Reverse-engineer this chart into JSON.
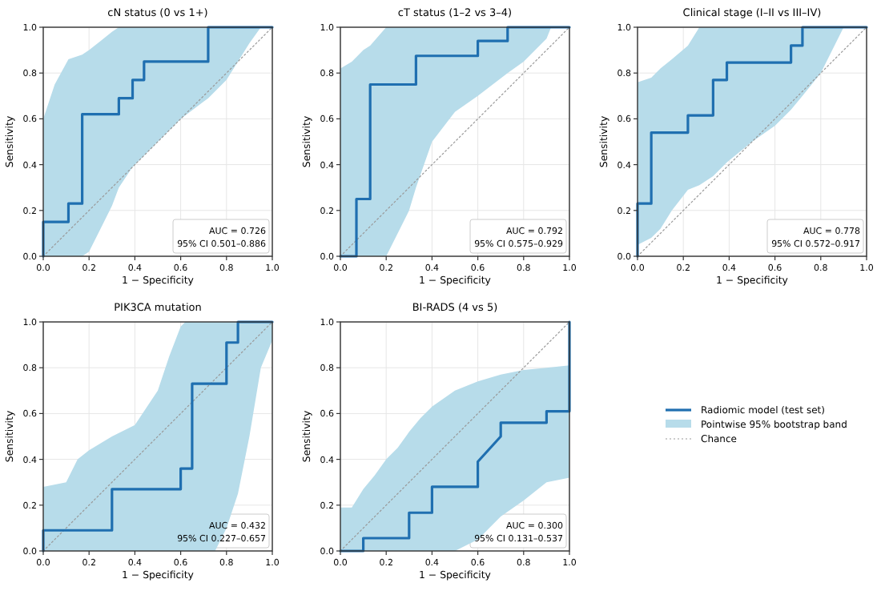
{
  "chart_data": [
    {
      "type": "line",
      "title": "cN status (0 vs 1+)",
      "xlabel": "1 − Specificity",
      "ylabel": "Sensitivity",
      "xlim": [
        0,
        1
      ],
      "ylim": [
        0,
        1
      ],
      "xticks": [
        {
          "value": 0,
          "label": "0.0"
        },
        {
          "value": 0.2,
          "label": "0.2"
        },
        {
          "value": 0.4,
          "label": "0.4"
        },
        {
          "value": 0.6,
          "label": "0.6"
        },
        {
          "value": 0.8,
          "label": "0.8"
        },
        {
          "value": 1,
          "label": "1.0"
        }
      ],
      "yticks": [
        {
          "value": 0,
          "label": "0.0"
        },
        {
          "value": 0.2,
          "label": "0.2"
        },
        {
          "value": 0.4,
          "label": "0.4"
        },
        {
          "value": 0.6,
          "label": "0.6"
        },
        {
          "value": 0.8,
          "label": "0.8"
        },
        {
          "value": 1,
          "label": "1.0"
        }
      ],
      "grid": true,
      "annotations": [
        "AUC = 0.726",
        "95% CI 0.501–0.886"
      ],
      "series": [
        {
          "type": "line",
          "color": "#999999",
          "line_style": "dotted",
          "x": [
            0,
            1
          ],
          "values": [
            0,
            1
          ]
        },
        {
          "type": "line",
          "color": "#1f6fb0",
          "line_style": "solid",
          "x": [
            0,
            0,
            0.05,
            0.11,
            0.11,
            0.17,
            0.17,
            0.2,
            0.25,
            0.3,
            0.33,
            0.33,
            0.39,
            0.39,
            0.44,
            0.44,
            0.5,
            0.6,
            0.72,
            0.72,
            0.8,
            0.9,
            0.95,
            1
          ],
          "values": [
            0,
            0.15,
            0.15,
            0.15,
            0.23,
            0.23,
            0.62,
            0.62,
            0.62,
            0.62,
            0.62,
            0.69,
            0.69,
            0.77,
            0.77,
            0.85,
            0.85,
            0.85,
            0.85,
            1,
            1,
            1,
            1,
            1
          ],
          "upper": [
            0.6,
            0.6,
            0.75,
            0.86,
            0.86,
            0.88,
            0.88,
            0.9,
            0.94,
            0.98,
            1,
            1,
            1,
            1,
            1,
            1,
            1,
            1,
            1,
            1,
            1,
            1,
            1,
            1
          ],
          "lower": [
            0,
            0,
            0,
            0,
            0,
            0,
            0,
            0.02,
            0.12,
            0.22,
            0.3,
            0.3,
            0.39,
            0.39,
            0.44,
            0.44,
            0.5,
            0.6,
            0.69,
            0.69,
            0.77,
            0.93,
            1,
            1
          ]
        }
      ]
    },
    {
      "type": "line",
      "title": "cT status (1–2 vs 3–4)",
      "xlabel": "1 − Specificity",
      "ylabel": "Sensitivity",
      "xlim": [
        0,
        1
      ],
      "ylim": [
        0,
        1
      ],
      "xticks": [
        {
          "value": 0,
          "label": "0.0"
        },
        {
          "value": 0.2,
          "label": "0.2"
        },
        {
          "value": 0.4,
          "label": "0.4"
        },
        {
          "value": 0.6,
          "label": "0.6"
        },
        {
          "value": 0.8,
          "label": "0.8"
        },
        {
          "value": 1,
          "label": "1.0"
        }
      ],
      "yticks": [
        {
          "value": 0,
          "label": "0.0"
        },
        {
          "value": 0.2,
          "label": "0.2"
        },
        {
          "value": 0.4,
          "label": "0.4"
        },
        {
          "value": 0.6,
          "label": "0.6"
        },
        {
          "value": 0.8,
          "label": "0.8"
        },
        {
          "value": 1,
          "label": "1.0"
        }
      ],
      "grid": true,
      "annotations": [
        "AUC = 0.792",
        "95% CI 0.575–0.929"
      ],
      "series": [
        {
          "type": "line",
          "color": "#999999",
          "line_style": "dotted",
          "x": [
            0,
            1
          ],
          "values": [
            0,
            1
          ]
        },
        {
          "type": "line",
          "color": "#1f6fb0",
          "line_style": "solid",
          "x": [
            0,
            0.05,
            0.07,
            0.07,
            0.1,
            0.13,
            0.13,
            0.2,
            0.25,
            0.3,
            0.33,
            0.33,
            0.4,
            0.5,
            0.6,
            0.6,
            0.73,
            0.73,
            0.8,
            0.9,
            0.92,
            1
          ],
          "values": [
            0,
            0,
            0,
            0.25,
            0.25,
            0.25,
            0.75,
            0.75,
            0.75,
            0.75,
            0.75,
            0.875,
            0.875,
            0.875,
            0.875,
            0.94,
            0.94,
            1,
            1,
            1,
            1,
            1
          ],
          "upper": [
            0.82,
            0.85,
            0.87,
            0.87,
            0.9,
            0.92,
            0.92,
            1,
            1,
            1,
            1,
            1,
            1,
            1,
            1,
            1,
            1,
            1,
            1,
            1,
            1,
            1
          ],
          "lower": [
            0,
            0,
            0,
            0,
            0,
            0,
            0,
            0,
            0.1,
            0.2,
            0.3,
            0.3,
            0.5,
            0.63,
            0.7,
            0.7,
            0.8,
            0.8,
            0.85,
            0.95,
            1,
            1
          ]
        }
      ]
    },
    {
      "type": "line",
      "title": "Clinical stage (I–II vs III–IV)",
      "xlabel": "1 − Specificity",
      "ylabel": "Sensitivity",
      "xlim": [
        0,
        1
      ],
      "ylim": [
        0,
        1
      ],
      "xticks": [
        {
          "value": 0,
          "label": "0.0"
        },
        {
          "value": 0.2,
          "label": "0.2"
        },
        {
          "value": 0.4,
          "label": "0.4"
        },
        {
          "value": 0.6,
          "label": "0.6"
        },
        {
          "value": 0.8,
          "label": "0.8"
        },
        {
          "value": 1,
          "label": "1.0"
        }
      ],
      "yticks": [
        {
          "value": 0,
          "label": "0.0"
        },
        {
          "value": 0.2,
          "label": "0.2"
        },
        {
          "value": 0.4,
          "label": "0.4"
        },
        {
          "value": 0.6,
          "label": "0.6"
        },
        {
          "value": 0.8,
          "label": "0.8"
        },
        {
          "value": 1,
          "label": "1.0"
        }
      ],
      "grid": true,
      "annotations": [
        "AUC = 0.778",
        "95% CI 0.572–0.917"
      ],
      "series": [
        {
          "type": "line",
          "color": "#999999",
          "line_style": "dotted",
          "x": [
            0,
            1
          ],
          "values": [
            0,
            1
          ]
        },
        {
          "type": "line",
          "color": "#1f6fb0",
          "line_style": "solid",
          "x": [
            0,
            0,
            0.06,
            0.06,
            0.1,
            0.15,
            0.22,
            0.22,
            0.27,
            0.33,
            0.33,
            0.39,
            0.39,
            0.5,
            0.6,
            0.67,
            0.67,
            0.72,
            0.72,
            0.8,
            0.9,
            1
          ],
          "values": [
            0,
            0.23,
            0.23,
            0.54,
            0.54,
            0.54,
            0.54,
            0.615,
            0.615,
            0.615,
            0.77,
            0.77,
            0.846,
            0.846,
            0.846,
            0.846,
            0.92,
            0.92,
            1,
            1,
            1,
            1
          ],
          "upper": [
            0.76,
            0.76,
            0.78,
            0.78,
            0.82,
            0.86,
            0.92,
            0.92,
            1,
            1,
            1,
            1,
            1,
            1,
            1,
            1,
            1,
            1,
            1,
            1,
            1,
            1
          ],
          "lower": [
            0.05,
            0.05,
            0.08,
            0.08,
            0.12,
            0.2,
            0.29,
            0.29,
            0.31,
            0.35,
            0.35,
            0.41,
            0.41,
            0.5,
            0.57,
            0.64,
            0.64,
            0.7,
            0.7,
            0.8,
            1,
            1
          ]
        }
      ]
    },
    {
      "type": "line",
      "title": "PIK3CA mutation",
      "xlabel": "1 − Specificity",
      "ylabel": "Sensitivity",
      "xlim": [
        0,
        1
      ],
      "ylim": [
        0,
        1
      ],
      "xticks": [
        {
          "value": 0,
          "label": "0.0"
        },
        {
          "value": 0.2,
          "label": "0.2"
        },
        {
          "value": 0.4,
          "label": "0.4"
        },
        {
          "value": 0.6,
          "label": "0.6"
        },
        {
          "value": 0.8,
          "label": "0.8"
        },
        {
          "value": 1,
          "label": "1.0"
        }
      ],
      "yticks": [
        {
          "value": 0,
          "label": "0.0"
        },
        {
          "value": 0.2,
          "label": "0.2"
        },
        {
          "value": 0.4,
          "label": "0.4"
        },
        {
          "value": 0.6,
          "label": "0.6"
        },
        {
          "value": 0.8,
          "label": "0.8"
        },
        {
          "value": 1,
          "label": "1.0"
        }
      ],
      "grid": true,
      "annotations": [
        "AUC = 0.432",
        "95% CI 0.227–0.657"
      ],
      "series": [
        {
          "type": "line",
          "color": "#999999",
          "line_style": "dotted",
          "x": [
            0,
            1
          ],
          "values": [
            0,
            1
          ]
        },
        {
          "type": "line",
          "color": "#1f6fb0",
          "line_style": "solid",
          "x": [
            0,
            0,
            0.1,
            0.15,
            0.2,
            0.3,
            0.3,
            0.4,
            0.5,
            0.55,
            0.6,
            0.6,
            0.62,
            0.65,
            0.65,
            0.75,
            0.8,
            0.8,
            0.85,
            0.85,
            0.9,
            0.95,
            1
          ],
          "values": [
            0,
            0.09,
            0.09,
            0.09,
            0.09,
            0.09,
            0.27,
            0.27,
            0.27,
            0.27,
            0.27,
            0.36,
            0.36,
            0.36,
            0.73,
            0.73,
            0.73,
            0.91,
            0.91,
            1,
            1,
            1,
            1
          ],
          "upper": [
            0.28,
            0.28,
            0.3,
            0.4,
            0.44,
            0.5,
            0.5,
            0.55,
            0.7,
            0.85,
            0.98,
            0.98,
            1,
            1,
            1,
            1,
            1,
            1,
            1,
            1,
            1,
            1,
            1
          ],
          "lower": [
            0,
            0,
            0,
            0,
            0,
            0,
            0,
            0,
            0,
            0,
            0,
            0,
            0,
            0,
            0,
            0,
            0.1,
            0.1,
            0.25,
            0.25,
            0.5,
            0.8,
            0.92
          ]
        }
      ]
    },
    {
      "type": "line",
      "title": "BI-RADS (4 vs 5)",
      "xlabel": "1 − Specificity",
      "ylabel": "Sensitivity",
      "xlim": [
        0,
        1
      ],
      "ylim": [
        0,
        1
      ],
      "xticks": [
        {
          "value": 0,
          "label": "0.0"
        },
        {
          "value": 0.2,
          "label": "0.2"
        },
        {
          "value": 0.4,
          "label": "0.4"
        },
        {
          "value": 0.6,
          "label": "0.6"
        },
        {
          "value": 0.8,
          "label": "0.8"
        },
        {
          "value": 1,
          "label": "1.0"
        }
      ],
      "yticks": [
        {
          "value": 0,
          "label": "0.0"
        },
        {
          "value": 0.2,
          "label": "0.2"
        },
        {
          "value": 0.4,
          "label": "0.4"
        },
        {
          "value": 0.6,
          "label": "0.6"
        },
        {
          "value": 0.8,
          "label": "0.8"
        },
        {
          "value": 1,
          "label": "1.0"
        }
      ],
      "grid": true,
      "legend": "right",
      "annotations": [
        "AUC = 0.300",
        "95% CI 0.131–0.537",
        "Pointwise 95% bootstrap band"
      ],
      "series": [
        {
          "type": "line",
          "name": "Chance",
          "color": "#999999",
          "line_style": "dotted",
          "x": [
            0,
            1
          ],
          "values": [
            0,
            1
          ]
        },
        {
          "type": "line",
          "name": "Radiomic model (test set)",
          "color": "#1f6fb0",
          "line_style": "solid",
          "x": [
            0,
            0.05,
            0.1,
            0.1,
            0.15,
            0.2,
            0.25,
            0.3,
            0.3,
            0.35,
            0.4,
            0.4,
            0.5,
            0.6,
            0.6,
            0.7,
            0.7,
            0.8,
            0.9,
            0.9,
            1,
            1
          ],
          "values": [
            0,
            0,
            0,
            0.056,
            0.056,
            0.056,
            0.056,
            0.056,
            0.167,
            0.167,
            0.167,
            0.28,
            0.28,
            0.28,
            0.39,
            0.5,
            0.56,
            0.56,
            0.56,
            0.61,
            0.61,
            1
          ],
          "upper": [
            0.19,
            0.19,
            0.27,
            0.27,
            0.33,
            0.4,
            0.45,
            0.52,
            0.52,
            0.58,
            0.63,
            0.63,
            0.7,
            0.74,
            0.74,
            0.77,
            0.77,
            0.79,
            0.8,
            0.8,
            0.81,
            0.81
          ],
          "lower": [
            0,
            0,
            0,
            0,
            0,
            0,
            0,
            0,
            0,
            0,
            0,
            0,
            0,
            0.05,
            0.05,
            0.15,
            0.15,
            0.22,
            0.3,
            0.3,
            0.32,
            0.32
          ]
        }
      ]
    }
  ]
}
